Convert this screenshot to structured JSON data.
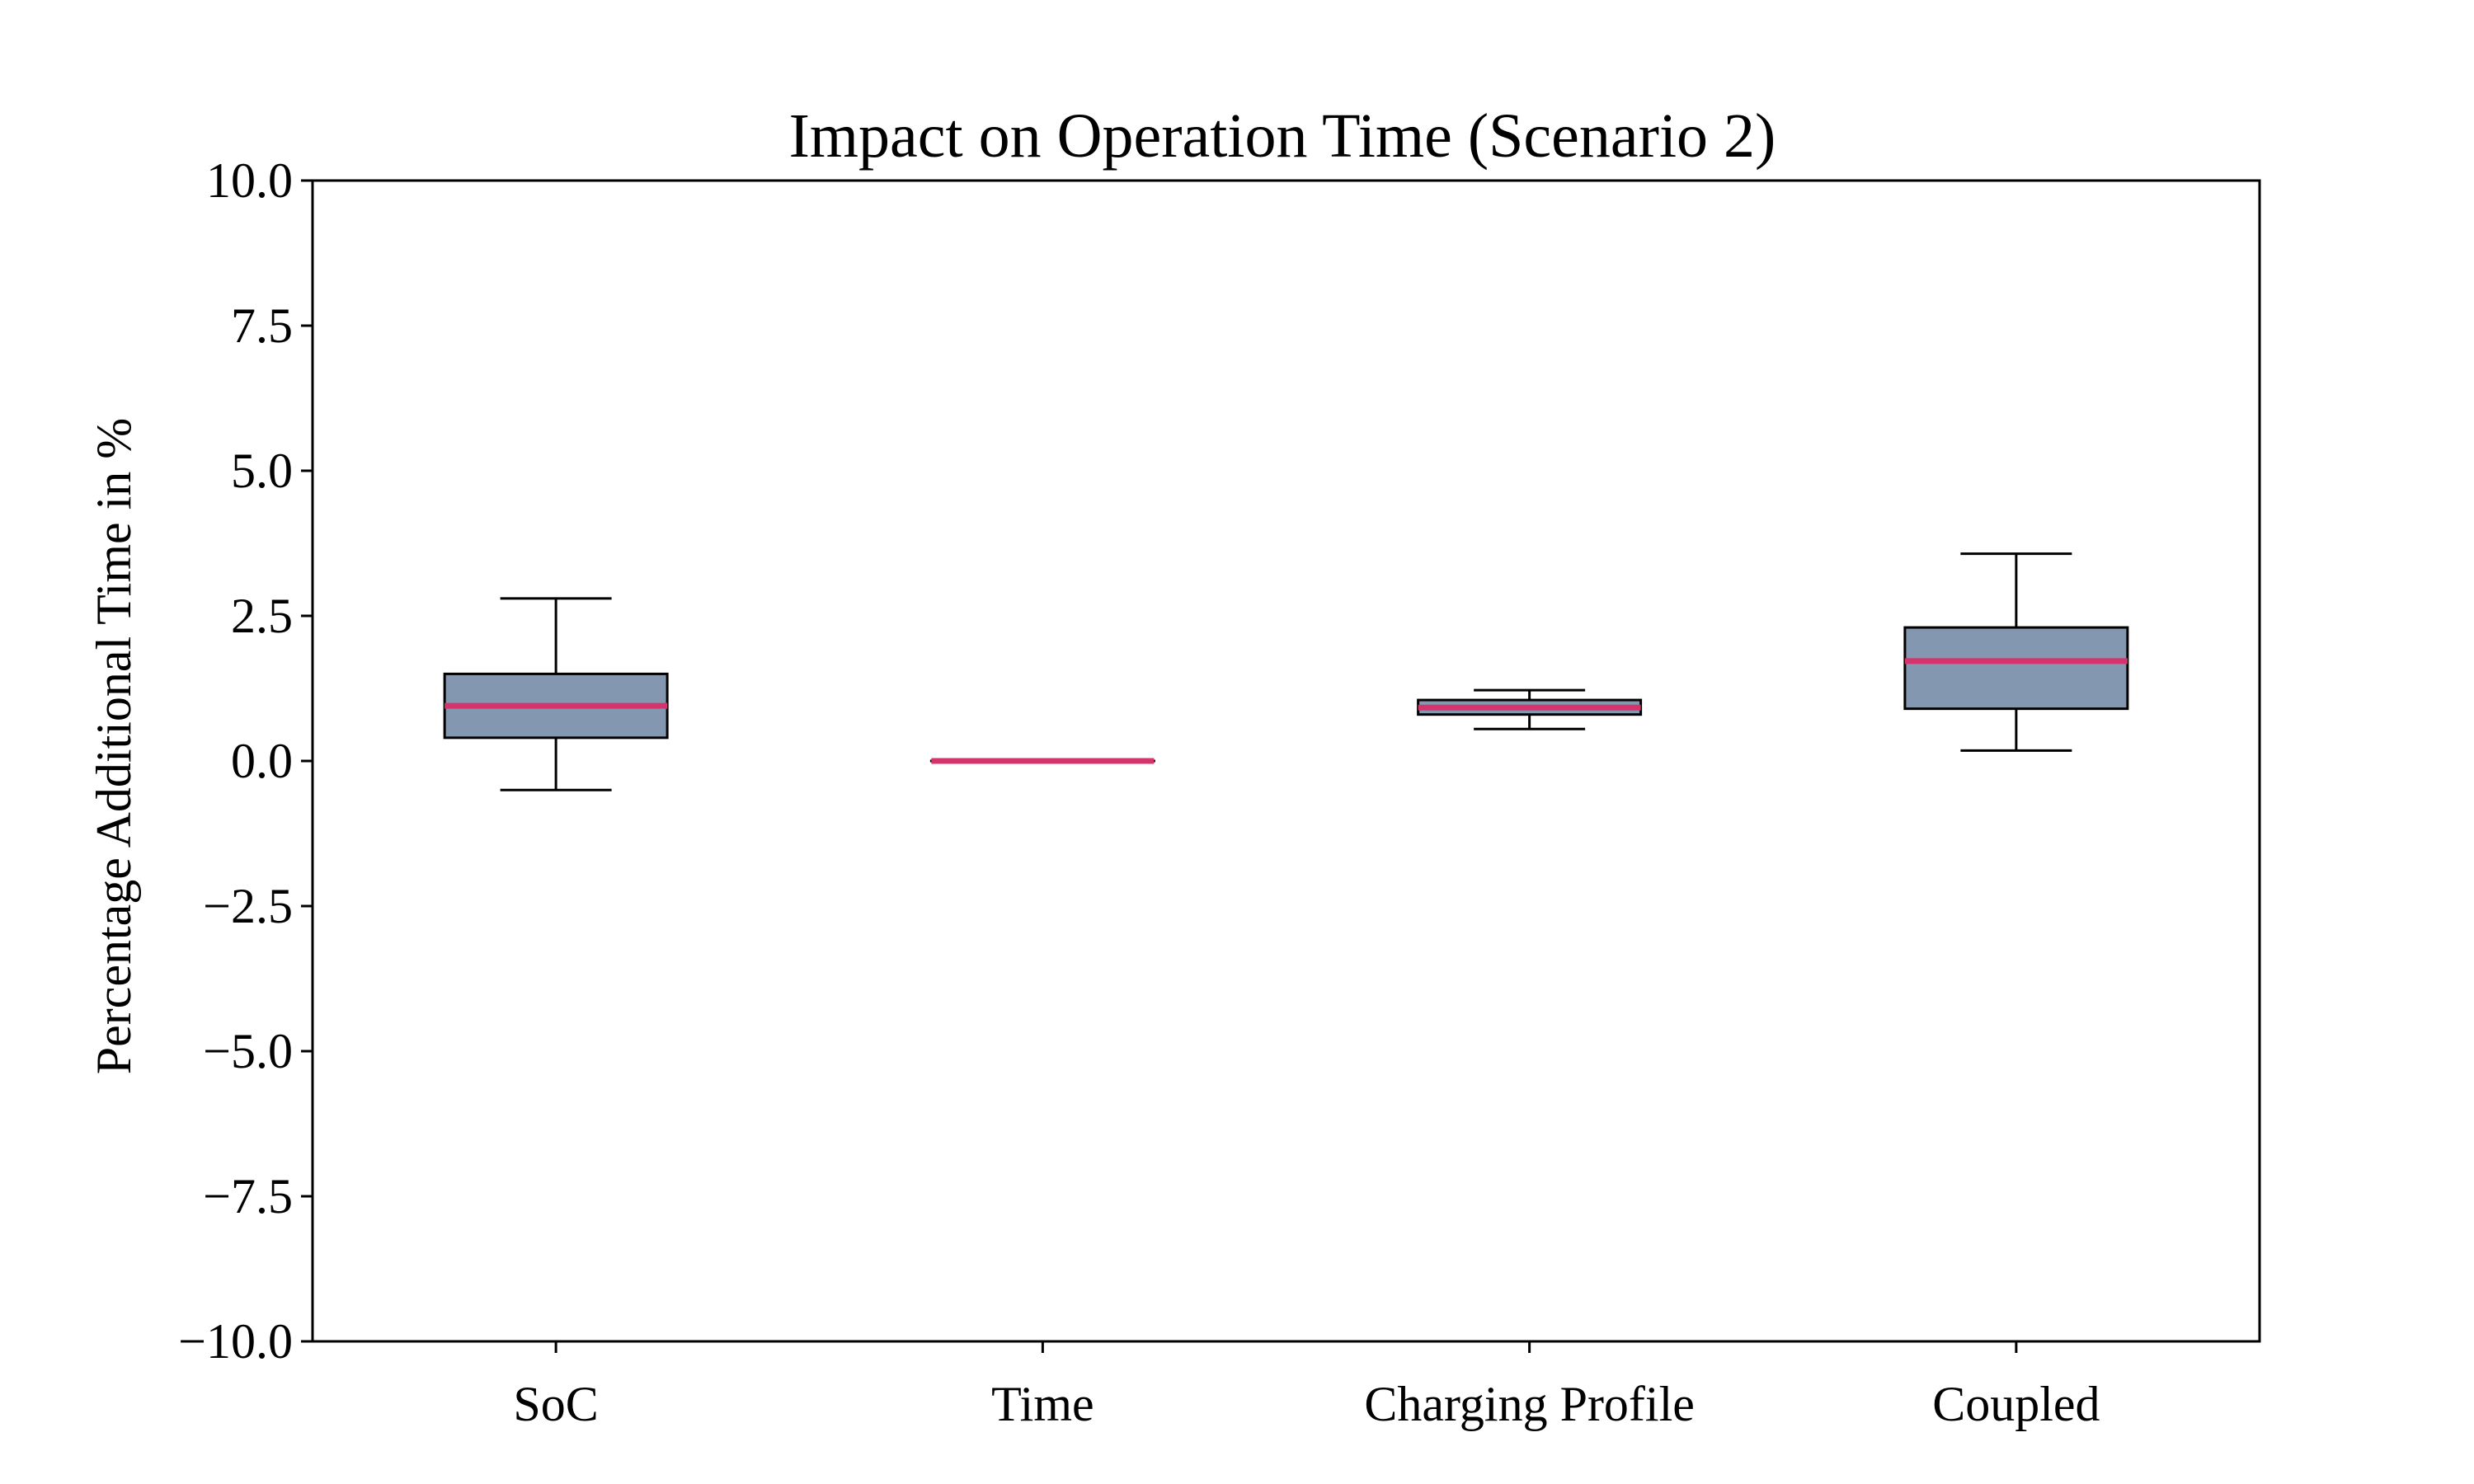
{
  "chart_data": {
    "type": "box",
    "title": "Impact on Operation Time (Scenario 2)",
    "xlabel": "",
    "ylabel": "Percentage Additional Time in %",
    "ylim": [
      -10.0,
      10.0
    ],
    "yticks": [
      10.0,
      7.5,
      5.0,
      2.5,
      0.0,
      -2.5,
      -5.0,
      -7.5,
      -10.0
    ],
    "ytick_labels": [
      "10.0",
      "7.5",
      "5.0",
      "2.5",
      "0.0",
      "−2.5",
      "−5.0",
      "−7.5",
      "−10.0"
    ],
    "categories": [
      "SoC",
      "Time",
      "Charging Profile",
      "Coupled"
    ],
    "boxes": [
      {
        "category": "SoC",
        "whisker_low": -0.5,
        "q1": 0.4,
        "median": 0.95,
        "q3": 1.5,
        "whisker_high": 2.8
      },
      {
        "category": "Time",
        "whisker_low": 0.0,
        "q1": 0.0,
        "median": 0.0,
        "q3": 0.0,
        "whisker_high": 0.0
      },
      {
        "category": "Charging Profile",
        "whisker_low": 0.55,
        "q1": 0.8,
        "median": 0.92,
        "q3": 1.05,
        "whisker_high": 1.22
      },
      {
        "category": "Coupled",
        "whisker_low": 0.18,
        "q1": 0.9,
        "median": 1.72,
        "q3": 2.3,
        "whisker_high": 3.57
      }
    ],
    "grid": false,
    "legend": "none",
    "colors": {
      "box_fill": "#8497b0",
      "box_edge": "#000000",
      "median": "#d6336c",
      "whisker": "#000000"
    }
  }
}
